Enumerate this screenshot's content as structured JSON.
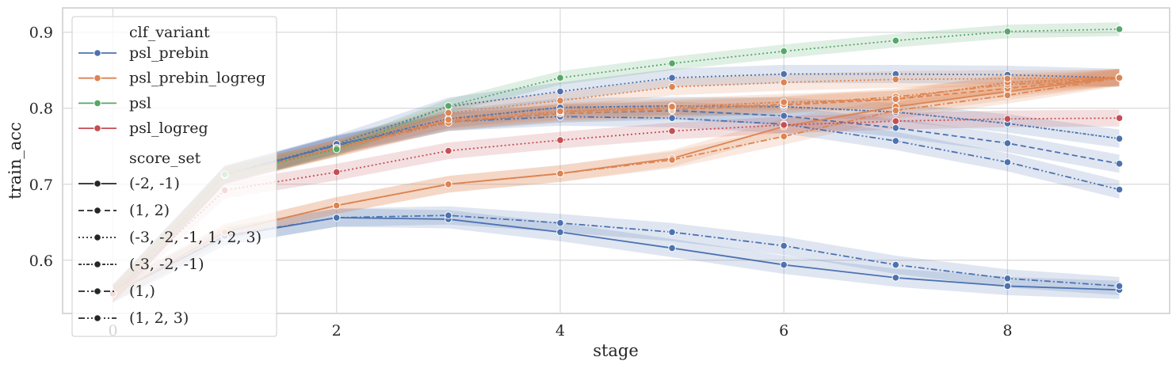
{
  "chart_data": {
    "type": "line",
    "xlabel": "stage",
    "ylabel": "train_acc",
    "xlim": [
      -0.45,
      9.45
    ],
    "ylim": [
      0.53,
      0.932
    ],
    "x_ticks": [
      0,
      2,
      4,
      6,
      8
    ],
    "y_ticks": [
      0.6,
      0.7,
      0.8,
      0.9
    ],
    "grid": true,
    "legend_position": "top-left",
    "legend": {
      "hue_title": "clf_variant",
      "hue_entries": [
        {
          "name": "psl_prebin",
          "color": "#4c72b0"
        },
        {
          "name": "psl_prebin_logreg",
          "color": "#dd8452"
        },
        {
          "name": "psl",
          "color": "#55a868"
        },
        {
          "name": "psl_logreg",
          "color": "#c44e52"
        }
      ],
      "style_title": "score_set",
      "style_entries": [
        {
          "name": "(-2, -1)",
          "dash": "solid"
        },
        {
          "name": "(1, 2)",
          "dash": "dashed"
        },
        {
          "name": "(-3, -2, -1, 1, 2, 3)",
          "dash": "dotted"
        },
        {
          "name": "(-3, -2, -1)",
          "dash": "dashdot-dense"
        },
        {
          "name": "(1,)",
          "dash": "dashdot"
        },
        {
          "name": "(1, 2, 3)",
          "dash": "dashdotdot"
        }
      ]
    },
    "series": [
      {
        "name": "psl_prebin",
        "score_set": "(-2, -1)",
        "color": "#4c72b0",
        "dash": "solid",
        "ci": 0.012,
        "x": [
          0,
          1,
          2,
          3,
          4,
          5,
          6,
          7,
          8,
          9
        ],
        "y": [
          0.556,
          0.631,
          0.656,
          0.654,
          0.637,
          0.616,
          0.594,
          0.577,
          0.566,
          0.561
        ]
      },
      {
        "name": "psl_prebin",
        "score_set": "(1,)",
        "color": "#4c72b0",
        "dash": "dashdot",
        "ci": 0.012,
        "x": [
          0,
          1,
          2,
          3,
          4,
          5,
          6,
          7,
          8,
          9
        ],
        "y": [
          0.556,
          0.632,
          0.656,
          0.659,
          0.649,
          0.637,
          0.619,
          0.594,
          0.576,
          0.566
        ]
      },
      {
        "name": "psl_prebin",
        "score_set": "(1, 2)",
        "color": "#4c72b0",
        "dash": "dashed",
        "ci": 0.012,
        "x": [
          0,
          1,
          2,
          3,
          4,
          5,
          6,
          7,
          8,
          9
        ],
        "y": [
          0.556,
          0.712,
          0.752,
          0.782,
          0.793,
          0.797,
          0.79,
          0.774,
          0.754,
          0.727
        ]
      },
      {
        "name": "psl_prebin",
        "score_set": "(1, 2, 3)",
        "color": "#4c72b0",
        "dash": "dashdotdot",
        "ci": 0.012,
        "x": [
          0,
          1,
          2,
          3,
          4,
          5,
          6,
          7,
          8,
          9
        ],
        "y": [
          0.556,
          0.712,
          0.751,
          0.782,
          0.789,
          0.787,
          0.779,
          0.757,
          0.729,
          0.693
        ]
      },
      {
        "name": "psl_prebin",
        "score_set": "(-3, -2, -1)",
        "color": "#4c72b0",
        "dash": "dashdot-dense",
        "ci": 0.012,
        "x": [
          0,
          1,
          2,
          3,
          4,
          5,
          6,
          7,
          8,
          9
        ],
        "y": [
          0.556,
          0.712,
          0.752,
          0.786,
          0.801,
          0.803,
          0.802,
          0.795,
          0.78,
          0.76
        ]
      },
      {
        "name": "psl_prebin",
        "score_set": "(-3, -2, -1, 1, 2, 3)",
        "color": "#4c72b0",
        "dash": "dotted",
        "ci": 0.012,
        "x": [
          0,
          1,
          2,
          3,
          4,
          5,
          6,
          7,
          8,
          9
        ],
        "y": [
          0.556,
          0.713,
          0.753,
          0.802,
          0.822,
          0.84,
          0.845,
          0.845,
          0.844,
          0.84
        ]
      },
      {
        "name": "psl_prebin_logreg",
        "score_set": "(-2, -1)",
        "color": "#dd8452",
        "dash": "solid",
        "ci": 0.011,
        "x": [
          0,
          1,
          2,
          3,
          4,
          5,
          6,
          7,
          8,
          9
        ],
        "y": [
          0.556,
          0.637,
          0.672,
          0.7,
          0.714,
          0.734,
          0.776,
          0.802,
          0.822,
          0.841
        ]
      },
      {
        "name": "psl_prebin_logreg",
        "score_set": "(1,)",
        "color": "#dd8452",
        "dash": "dashdot",
        "ci": 0.011,
        "x": [
          0,
          1,
          2,
          3,
          4,
          5,
          6,
          7,
          8,
          9
        ],
        "y": [
          0.556,
          0.637,
          0.672,
          0.7,
          0.714,
          0.732,
          0.763,
          0.797,
          0.817,
          0.84
        ]
      },
      {
        "name": "psl_prebin_logreg",
        "score_set": "(1, 2)",
        "color": "#dd8452",
        "dash": "dashed",
        "ci": 0.011,
        "x": [
          0,
          1,
          2,
          3,
          4,
          5,
          6,
          7,
          8,
          9
        ],
        "y": [
          0.556,
          0.712,
          0.747,
          0.783,
          0.793,
          0.798,
          0.804,
          0.812,
          0.826,
          0.841
        ]
      },
      {
        "name": "psl_prebin_logreg",
        "score_set": "(1, 2, 3)",
        "color": "#dd8452",
        "dash": "dashdotdot",
        "ci": 0.011,
        "x": [
          0,
          1,
          2,
          3,
          4,
          5,
          6,
          7,
          8,
          9
        ],
        "y": [
          0.556,
          0.712,
          0.747,
          0.781,
          0.795,
          0.8,
          0.805,
          0.815,
          0.831,
          0.84
        ]
      },
      {
        "name": "psl_prebin_logreg",
        "score_set": "(-3, -2, -1)",
        "color": "#dd8452",
        "dash": "dashdot-dense",
        "ci": 0.011,
        "x": [
          0,
          1,
          2,
          3,
          4,
          5,
          6,
          7,
          8,
          9
        ],
        "y": [
          0.556,
          0.712,
          0.748,
          0.785,
          0.796,
          0.802,
          0.808,
          0.812,
          0.834,
          0.841
        ]
      },
      {
        "name": "psl_prebin_logreg",
        "score_set": "(-3, -2, -1, 1, 2, 3)",
        "color": "#dd8452",
        "dash": "dotted",
        "ci": 0.011,
        "x": [
          0,
          1,
          2,
          3,
          4,
          5,
          6,
          7,
          8,
          9
        ],
        "y": [
          0.556,
          0.712,
          0.748,
          0.794,
          0.81,
          0.828,
          0.834,
          0.838,
          0.839,
          0.84
        ]
      },
      {
        "name": "psl",
        "score_set": "(-3, -2, -1, 1, 2, 3)",
        "color": "#55a868",
        "dash": "dotted",
        "ci": 0.009,
        "x": [
          0,
          1,
          2,
          3,
          4,
          5,
          6,
          7,
          8,
          9
        ],
        "y": [
          0.556,
          0.713,
          0.746,
          0.803,
          0.84,
          0.859,
          0.875,
          0.889,
          0.901,
          0.904
        ]
      },
      {
        "name": "psl_logreg",
        "score_set": "(-3, -2, -1, 1, 2, 3)",
        "color": "#c44e52",
        "dash": "dotted",
        "ci": 0.011,
        "x": [
          0,
          1,
          2,
          3,
          4,
          5,
          6,
          7,
          8,
          9
        ],
        "y": [
          0.556,
          0.692,
          0.716,
          0.744,
          0.758,
          0.77,
          0.778,
          0.783,
          0.786,
          0.787
        ]
      }
    ]
  }
}
